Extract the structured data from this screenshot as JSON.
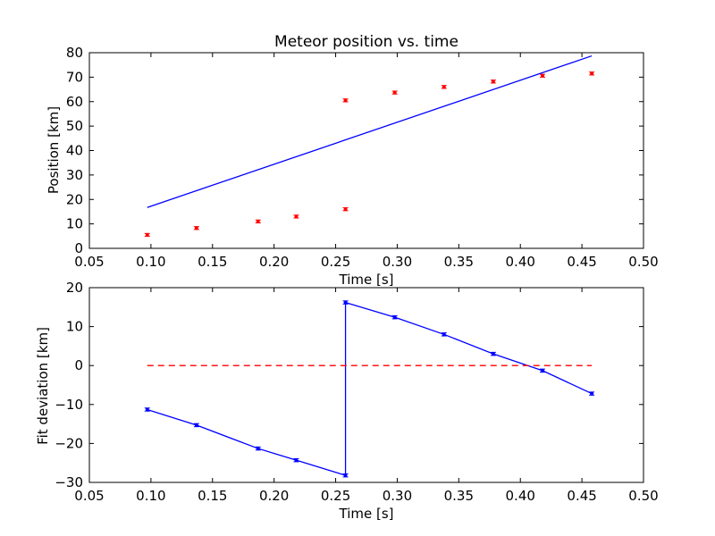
{
  "chart_data": [
    {
      "type": "scatter",
      "title": "Meteor position vs. time",
      "xlabel": "Time [s]",
      "ylabel": "Position [km]",
      "xlim": [
        0.05,
        0.5
      ],
      "ylim": [
        0,
        80
      ],
      "xticks": [
        "0.05",
        "0.10",
        "0.15",
        "0.20",
        "0.25",
        "0.30",
        "0.35",
        "0.40",
        "0.45",
        "0.50"
      ],
      "yticks": [
        "0",
        "10",
        "20",
        "30",
        "40",
        "50",
        "60",
        "70",
        "80"
      ],
      "grid": false,
      "series": [
        {
          "kind": "scatter-errorbar",
          "color": "#ff0000",
          "x": [
            0.097,
            0.137,
            0.187,
            0.218,
            0.258,
            0.258,
            0.298,
            0.338,
            0.378,
            0.418,
            0.458
          ],
          "y": [
            5.5,
            8.3,
            11.0,
            13.0,
            16.0,
            60.5,
            63.7,
            66.0,
            68.2,
            70.6,
            71.5
          ],
          "yerr": [
            0.6,
            0.6,
            0.6,
            0.6,
            0.6,
            0.6,
            0.6,
            0.6,
            0.6,
            0.6,
            0.6
          ]
        },
        {
          "kind": "line",
          "color": "#0000ff",
          "x": [
            0.097,
            0.458
          ],
          "y": [
            16.7,
            78.7
          ]
        }
      ]
    },
    {
      "type": "line",
      "title": "",
      "xlabel": "Time [s]",
      "ylabel": "Fit deviation [km]",
      "xlim": [
        0.05,
        0.5
      ],
      "ylim": [
        -30,
        20
      ],
      "xticks": [
        "0.05",
        "0.10",
        "0.15",
        "0.20",
        "0.25",
        "0.30",
        "0.35",
        "0.40",
        "0.45",
        "0.50"
      ],
      "yticks": [
        "−30",
        "−20",
        "−10",
        "0",
        "10",
        "20"
      ],
      "grid": false,
      "series": [
        {
          "kind": "line-errorbar",
          "color": "#0000ff",
          "x": [
            0.097,
            0.137,
            0.187,
            0.218,
            0.258,
            0.258,
            0.298,
            0.338,
            0.378,
            0.418,
            0.458
          ],
          "y": [
            -11.3,
            -15.3,
            -21.3,
            -24.3,
            -28.2,
            16.2,
            12.4,
            8.0,
            3.0,
            -1.3,
            -7.2
          ],
          "yerr": [
            0.4,
            0.4,
            0.4,
            0.4,
            0.4,
            0.4,
            0.4,
            0.4,
            0.4,
            0.4,
            0.4
          ]
        },
        {
          "kind": "dashed-line",
          "color": "#ff0000",
          "x": [
            0.097,
            0.458
          ],
          "y": [
            0,
            0
          ]
        }
      ]
    }
  ]
}
